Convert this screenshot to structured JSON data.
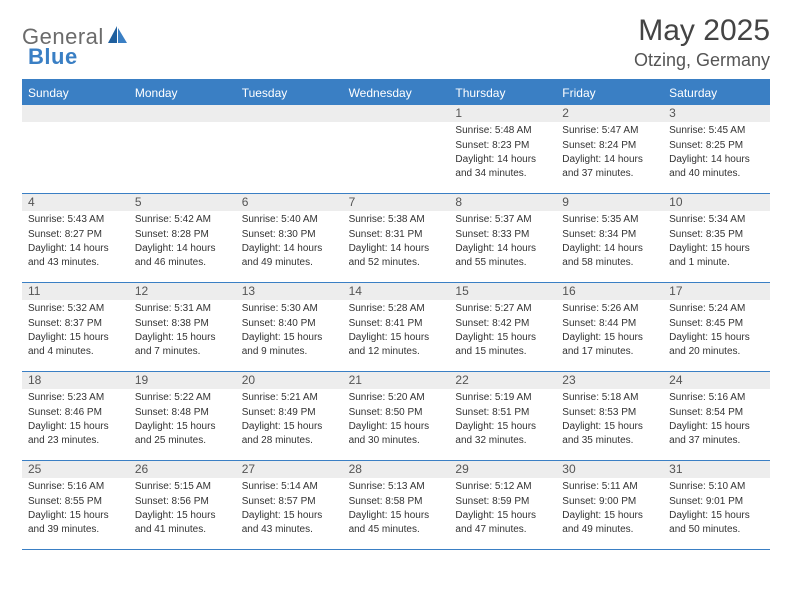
{
  "logo": {
    "text1": "General",
    "text2": "Blue"
  },
  "title": "May 2025",
  "location": "Otzing, Germany",
  "colors": {
    "accent": "#3a7fc4",
    "header_text": "#ffffff",
    "daynum_bg": "#ededed",
    "body_text": "#333333",
    "logo_gray": "#6b6b6b"
  },
  "weekdays": [
    "Sunday",
    "Monday",
    "Tuesday",
    "Wednesday",
    "Thursday",
    "Friday",
    "Saturday"
  ],
  "weeks": [
    [
      {
        "day": "",
        "sunrise": "",
        "sunset": "",
        "daylight": ""
      },
      {
        "day": "",
        "sunrise": "",
        "sunset": "",
        "daylight": ""
      },
      {
        "day": "",
        "sunrise": "",
        "sunset": "",
        "daylight": ""
      },
      {
        "day": "",
        "sunrise": "",
        "sunset": "",
        "daylight": ""
      },
      {
        "day": "1",
        "sunrise": "Sunrise: 5:48 AM",
        "sunset": "Sunset: 8:23 PM",
        "daylight": "Daylight: 14 hours and 34 minutes."
      },
      {
        "day": "2",
        "sunrise": "Sunrise: 5:47 AM",
        "sunset": "Sunset: 8:24 PM",
        "daylight": "Daylight: 14 hours and 37 minutes."
      },
      {
        "day": "3",
        "sunrise": "Sunrise: 5:45 AM",
        "sunset": "Sunset: 8:25 PM",
        "daylight": "Daylight: 14 hours and 40 minutes."
      }
    ],
    [
      {
        "day": "4",
        "sunrise": "Sunrise: 5:43 AM",
        "sunset": "Sunset: 8:27 PM",
        "daylight": "Daylight: 14 hours and 43 minutes."
      },
      {
        "day": "5",
        "sunrise": "Sunrise: 5:42 AM",
        "sunset": "Sunset: 8:28 PM",
        "daylight": "Daylight: 14 hours and 46 minutes."
      },
      {
        "day": "6",
        "sunrise": "Sunrise: 5:40 AM",
        "sunset": "Sunset: 8:30 PM",
        "daylight": "Daylight: 14 hours and 49 minutes."
      },
      {
        "day": "7",
        "sunrise": "Sunrise: 5:38 AM",
        "sunset": "Sunset: 8:31 PM",
        "daylight": "Daylight: 14 hours and 52 minutes."
      },
      {
        "day": "8",
        "sunrise": "Sunrise: 5:37 AM",
        "sunset": "Sunset: 8:33 PM",
        "daylight": "Daylight: 14 hours and 55 minutes."
      },
      {
        "day": "9",
        "sunrise": "Sunrise: 5:35 AM",
        "sunset": "Sunset: 8:34 PM",
        "daylight": "Daylight: 14 hours and 58 minutes."
      },
      {
        "day": "10",
        "sunrise": "Sunrise: 5:34 AM",
        "sunset": "Sunset: 8:35 PM",
        "daylight": "Daylight: 15 hours and 1 minute."
      }
    ],
    [
      {
        "day": "11",
        "sunrise": "Sunrise: 5:32 AM",
        "sunset": "Sunset: 8:37 PM",
        "daylight": "Daylight: 15 hours and 4 minutes."
      },
      {
        "day": "12",
        "sunrise": "Sunrise: 5:31 AM",
        "sunset": "Sunset: 8:38 PM",
        "daylight": "Daylight: 15 hours and 7 minutes."
      },
      {
        "day": "13",
        "sunrise": "Sunrise: 5:30 AM",
        "sunset": "Sunset: 8:40 PM",
        "daylight": "Daylight: 15 hours and 9 minutes."
      },
      {
        "day": "14",
        "sunrise": "Sunrise: 5:28 AM",
        "sunset": "Sunset: 8:41 PM",
        "daylight": "Daylight: 15 hours and 12 minutes."
      },
      {
        "day": "15",
        "sunrise": "Sunrise: 5:27 AM",
        "sunset": "Sunset: 8:42 PM",
        "daylight": "Daylight: 15 hours and 15 minutes."
      },
      {
        "day": "16",
        "sunrise": "Sunrise: 5:26 AM",
        "sunset": "Sunset: 8:44 PM",
        "daylight": "Daylight: 15 hours and 17 minutes."
      },
      {
        "day": "17",
        "sunrise": "Sunrise: 5:24 AM",
        "sunset": "Sunset: 8:45 PM",
        "daylight": "Daylight: 15 hours and 20 minutes."
      }
    ],
    [
      {
        "day": "18",
        "sunrise": "Sunrise: 5:23 AM",
        "sunset": "Sunset: 8:46 PM",
        "daylight": "Daylight: 15 hours and 23 minutes."
      },
      {
        "day": "19",
        "sunrise": "Sunrise: 5:22 AM",
        "sunset": "Sunset: 8:48 PM",
        "daylight": "Daylight: 15 hours and 25 minutes."
      },
      {
        "day": "20",
        "sunrise": "Sunrise: 5:21 AM",
        "sunset": "Sunset: 8:49 PM",
        "daylight": "Daylight: 15 hours and 28 minutes."
      },
      {
        "day": "21",
        "sunrise": "Sunrise: 5:20 AM",
        "sunset": "Sunset: 8:50 PM",
        "daylight": "Daylight: 15 hours and 30 minutes."
      },
      {
        "day": "22",
        "sunrise": "Sunrise: 5:19 AM",
        "sunset": "Sunset: 8:51 PM",
        "daylight": "Daylight: 15 hours and 32 minutes."
      },
      {
        "day": "23",
        "sunrise": "Sunrise: 5:18 AM",
        "sunset": "Sunset: 8:53 PM",
        "daylight": "Daylight: 15 hours and 35 minutes."
      },
      {
        "day": "24",
        "sunrise": "Sunrise: 5:16 AM",
        "sunset": "Sunset: 8:54 PM",
        "daylight": "Daylight: 15 hours and 37 minutes."
      }
    ],
    [
      {
        "day": "25",
        "sunrise": "Sunrise: 5:16 AM",
        "sunset": "Sunset: 8:55 PM",
        "daylight": "Daylight: 15 hours and 39 minutes."
      },
      {
        "day": "26",
        "sunrise": "Sunrise: 5:15 AM",
        "sunset": "Sunset: 8:56 PM",
        "daylight": "Daylight: 15 hours and 41 minutes."
      },
      {
        "day": "27",
        "sunrise": "Sunrise: 5:14 AM",
        "sunset": "Sunset: 8:57 PM",
        "daylight": "Daylight: 15 hours and 43 minutes."
      },
      {
        "day": "28",
        "sunrise": "Sunrise: 5:13 AM",
        "sunset": "Sunset: 8:58 PM",
        "daylight": "Daylight: 15 hours and 45 minutes."
      },
      {
        "day": "29",
        "sunrise": "Sunrise: 5:12 AM",
        "sunset": "Sunset: 8:59 PM",
        "daylight": "Daylight: 15 hours and 47 minutes."
      },
      {
        "day": "30",
        "sunrise": "Sunrise: 5:11 AM",
        "sunset": "Sunset: 9:00 PM",
        "daylight": "Daylight: 15 hours and 49 minutes."
      },
      {
        "day": "31",
        "sunrise": "Sunrise: 5:10 AM",
        "sunset": "Sunset: 9:01 PM",
        "daylight": "Daylight: 15 hours and 50 minutes."
      }
    ]
  ]
}
